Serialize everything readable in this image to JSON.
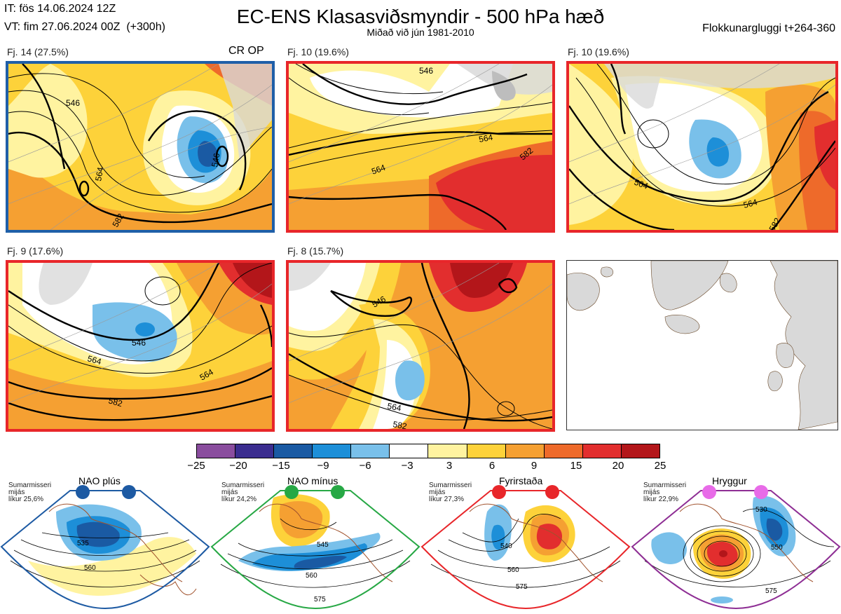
{
  "header": {
    "issue_time": "IT: fös 14.06.2024 12Z",
    "valid_time": "VT: fim 27.06.2024 00Z  (+300h)",
    "title": "EC-ENS Klasasviðsmyndir - 500 hPa hæð",
    "subtitle": "Miðað við jún 1981-2010",
    "window": "Flokkunargluggi t+264-360"
  },
  "panels": [
    {
      "label": "Fj. 14 (27.5%)",
      "border": "#1f5fa8",
      "extra": "CR OP",
      "contours": [
        "546",
        "564",
        "582",
        "546"
      ]
    },
    {
      "label": "Fj. 10 (19.6%)",
      "border": "#e8262a",
      "extra": "",
      "contours": [
        "546",
        "564",
        "564",
        "582"
      ]
    },
    {
      "label": "Fj. 10 (19.6%)",
      "border": "#e8262a",
      "extra": "",
      "contours": [
        "564",
        "564",
        "582"
      ]
    },
    {
      "label": "Fj. 9 (17.6%)",
      "border": "#e8262a",
      "extra": "",
      "contours": [
        "546",
        "564",
        "564",
        "582"
      ]
    },
    {
      "label": "Fj. 8 (15.7%)",
      "border": "#e8262a",
      "extra": "",
      "contours": [
        "546",
        "564",
        "582"
      ]
    }
  ],
  "colorbar": {
    "ticks": [
      "−25",
      "−20",
      "−15",
      "−9",
      "−6",
      "−3",
      "3",
      "6",
      "9",
      "15",
      "20",
      "25"
    ],
    "colors": [
      "#8a4d9e",
      "#3b2d8f",
      "#1a5aa3",
      "#1d8fd8",
      "#79c0ea",
      "#ffffff",
      "#fff3a0",
      "#fdd23a",
      "#f5a032",
      "#ee6a2a",
      "#e22e2e",
      "#b3161a"
    ]
  },
  "regimes": [
    {
      "name": "NAO plús",
      "note": "Sumarmisseri\nmijás\nlíkur 25,6%",
      "color": "#1d5aa3",
      "contours": [
        "535",
        "560"
      ]
    },
    {
      "name": "NAO mínus",
      "note": "Sumarmisseri\nmijás\nlíkur 24,2%",
      "color": "#27a845",
      "contours": [
        "545",
        "560",
        "575"
      ]
    },
    {
      "name": "Fyrirstaða",
      "note": "Sumarmisseri\nmijás\nlíkur 27,3%",
      "color": "#e8262a",
      "contours": [
        "540",
        "560",
        "575"
      ]
    },
    {
      "name": "Hryggur",
      "note": "Sumarmisseri\nmijás\nlíkur 22,9%",
      "color": "#8e2e94",
      "contours": [
        "530",
        "550",
        "575"
      ]
    }
  ]
}
